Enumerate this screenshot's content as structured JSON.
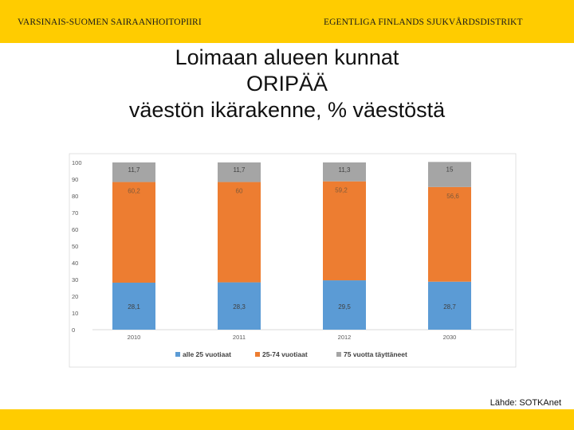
{
  "header": {
    "left": "VARSINAIS-SUOMEN SAIRAANHOITOPIIRI",
    "right": "EGENTLIGA FINLANDS SJUKVÅRDSDISTRIKT"
  },
  "title": {
    "line1": "Loimaan alueen kunnat",
    "line2": "ORIPÄÄ",
    "line3": "väestön ikärakenne, % väestöstä"
  },
  "source": "Lähde: SOTKAnet",
  "chart_data": {
    "type": "bar",
    "stacked": true,
    "categories": [
      "2010",
      "2011",
      "2012",
      "2030"
    ],
    "series": [
      {
        "name": "alle 25 vuotiaat",
        "values": [
          28.1,
          28.3,
          29.5,
          28.7
        ],
        "labels": [
          "28,1",
          "28,3",
          "29,5",
          "28,7"
        ],
        "color": "#5b9bd5"
      },
      {
        "name": "25-74 vuotiaat",
        "values": [
          60.2,
          60,
          59.2,
          56.6
        ],
        "labels": [
          "60,2",
          "60",
          "59,2",
          "56,6"
        ],
        "color": "#ed7d31"
      },
      {
        "name": "75 vuotta täyttäneet",
        "values": [
          11.7,
          11.7,
          11.3,
          15
        ],
        "labels": [
          "11,7",
          "11,7",
          "11,3",
          "15"
        ],
        "color": "#a5a5a5"
      }
    ],
    "ylim": [
      0,
      100
    ],
    "yticks": [
      0,
      10,
      20,
      30,
      40,
      50,
      60,
      70,
      80,
      90,
      100
    ],
    "legend": "bottom",
    "grid": false
  }
}
